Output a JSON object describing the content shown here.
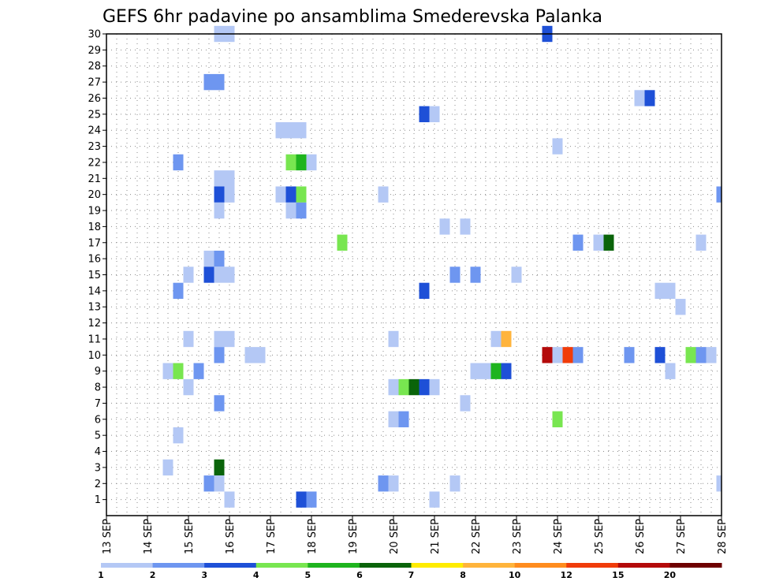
{
  "chart_data": {
    "type": "heatmap",
    "title": "GEFS 6hr padavine po ansamblima Smederevska Palanka",
    "x_ticks": [
      "13 SEP",
      "14 SEP",
      "15 SEP",
      "16 SEP",
      "17 SEP",
      "18 SEP",
      "19 SEP",
      "20 SEP",
      "21 SEP",
      "22 SEP",
      "23 SEP",
      "24 SEP",
      "25 SEP",
      "26 SEP",
      "27 SEP",
      "28 SEP"
    ],
    "y_ticks": [
      "1",
      "2",
      "3",
      "4",
      "5",
      "6",
      "7",
      "8",
      "9",
      "10",
      "11",
      "12",
      "13",
      "14",
      "15",
      "16",
      "17",
      "18",
      "19",
      "20",
      "21",
      "22",
      "23",
      "24",
      "25",
      "26",
      "27",
      "28",
      "29",
      "30"
    ],
    "ylim": [
      0,
      30
    ],
    "grid": true,
    "colorbar": {
      "labels": [
        "1",
        "2",
        "3",
        "4",
        "5",
        "6",
        "7",
        "8",
        "10",
        "12",
        "15",
        "20"
      ],
      "colors": [
        "#b4c8f5",
        "#6e96f0",
        "#1e50d7",
        "#78e650",
        "#1eb41e",
        "#0a640a",
        "#ffec00",
        "#ffb43c",
        "#ff8c1e",
        "#f03c0a",
        "#b40a0a",
        "#6e0000"
      ]
    },
    "cells": [
      {
        "x": 3.0,
        "y": 30,
        "c": 1
      },
      {
        "x": 2.75,
        "y": 30,
        "c": 1
      },
      {
        "x": 10.75,
        "y": 30,
        "c": 3
      },
      {
        "x": 2.5,
        "y": 27,
        "c": 2
      },
      {
        "x": 2.75,
        "y": 27,
        "c": 2
      },
      {
        "x": 13.0,
        "y": 26,
        "c": 1
      },
      {
        "x": 13.25,
        "y": 26,
        "c": 3
      },
      {
        "x": 7.75,
        "y": 25,
        "c": 3
      },
      {
        "x": 8.0,
        "y": 25,
        "c": 1
      },
      {
        "x": 4.25,
        "y": 24,
        "c": 1
      },
      {
        "x": 4.5,
        "y": 24,
        "c": 1
      },
      {
        "x": 4.75,
        "y": 24,
        "c": 1
      },
      {
        "x": 11.0,
        "y": 23,
        "c": 1
      },
      {
        "x": 1.75,
        "y": 22,
        "c": 2
      },
      {
        "x": 4.5,
        "y": 22,
        "c": 4
      },
      {
        "x": 4.75,
        "y": 22,
        "c": 5
      },
      {
        "x": 5.0,
        "y": 22,
        "c": 1
      },
      {
        "x": 2.75,
        "y": 21,
        "c": 1
      },
      {
        "x": 3.0,
        "y": 21,
        "c": 1
      },
      {
        "x": 2.75,
        "y": 20,
        "c": 3
      },
      {
        "x": 3.0,
        "y": 20,
        "c": 1
      },
      {
        "x": 4.25,
        "y": 20,
        "c": 1
      },
      {
        "x": 4.5,
        "y": 20,
        "c": 3
      },
      {
        "x": 4.75,
        "y": 20,
        "c": 4
      },
      {
        "x": 6.75,
        "y": 20,
        "c": 1
      },
      {
        "x": 15.0,
        "y": 20,
        "c": 2
      },
      {
        "x": 2.75,
        "y": 19,
        "c": 1
      },
      {
        "x": 4.5,
        "y": 19,
        "c": 1
      },
      {
        "x": 4.75,
        "y": 19,
        "c": 2
      },
      {
        "x": 8.25,
        "y": 18,
        "c": 1
      },
      {
        "x": 8.75,
        "y": 18,
        "c": 1
      },
      {
        "x": 5.75,
        "y": 17,
        "c": 4
      },
      {
        "x": 11.5,
        "y": 17,
        "c": 2
      },
      {
        "x": 12.0,
        "y": 17,
        "c": 1
      },
      {
        "x": 12.25,
        "y": 17,
        "c": 6
      },
      {
        "x": 14.5,
        "y": 17,
        "c": 1
      },
      {
        "x": 2.5,
        "y": 16,
        "c": 1
      },
      {
        "x": 2.75,
        "y": 16,
        "c": 2
      },
      {
        "x": 2.0,
        "y": 15,
        "c": 1
      },
      {
        "x": 2.5,
        "y": 15,
        "c": 3
      },
      {
        "x": 2.75,
        "y": 15,
        "c": 1
      },
      {
        "x": 3.0,
        "y": 15,
        "c": 1
      },
      {
        "x": 8.5,
        "y": 15,
        "c": 2
      },
      {
        "x": 9.0,
        "y": 15,
        "c": 2
      },
      {
        "x": 10.0,
        "y": 15,
        "c": 1
      },
      {
        "x": 1.75,
        "y": 14,
        "c": 2
      },
      {
        "x": 7.75,
        "y": 14,
        "c": 3
      },
      {
        "x": 13.5,
        "y": 14,
        "c": 1
      },
      {
        "x": 13.75,
        "y": 14,
        "c": 1
      },
      {
        "x": 14.0,
        "y": 13,
        "c": 1
      },
      {
        "x": 2.0,
        "y": 11,
        "c": 1
      },
      {
        "x": 2.75,
        "y": 11,
        "c": 1
      },
      {
        "x": 3.0,
        "y": 11,
        "c": 1
      },
      {
        "x": 7.0,
        "y": 11,
        "c": 1
      },
      {
        "x": 9.5,
        "y": 11,
        "c": 1
      },
      {
        "x": 9.75,
        "y": 11,
        "c": 8
      },
      {
        "x": 2.75,
        "y": 10,
        "c": 2
      },
      {
        "x": 3.5,
        "y": 10,
        "c": 1
      },
      {
        "x": 3.75,
        "y": 10,
        "c": 1
      },
      {
        "x": 10.75,
        "y": 10,
        "c": 11
      },
      {
        "x": 11.0,
        "y": 10,
        "c": 1
      },
      {
        "x": 11.25,
        "y": 10,
        "c": 10
      },
      {
        "x": 11.5,
        "y": 10,
        "c": 2
      },
      {
        "x": 12.75,
        "y": 10,
        "c": 2
      },
      {
        "x": 13.5,
        "y": 10,
        "c": 3
      },
      {
        "x": 14.25,
        "y": 10,
        "c": 4
      },
      {
        "x": 14.5,
        "y": 10,
        "c": 2
      },
      {
        "x": 14.75,
        "y": 10,
        "c": 1
      },
      {
        "x": 1.5,
        "y": 9,
        "c": 1
      },
      {
        "x": 1.75,
        "y": 9,
        "c": 4
      },
      {
        "x": 2.25,
        "y": 9,
        "c": 2
      },
      {
        "x": 9.0,
        "y": 9,
        "c": 1
      },
      {
        "x": 9.25,
        "y": 9,
        "c": 1
      },
      {
        "x": 9.5,
        "y": 9,
        "c": 5
      },
      {
        "x": 9.75,
        "y": 9,
        "c": 3
      },
      {
        "x": 13.75,
        "y": 9,
        "c": 1
      },
      {
        "x": 2.0,
        "y": 8,
        "c": 1
      },
      {
        "x": 7.0,
        "y": 8,
        "c": 1
      },
      {
        "x": 7.25,
        "y": 8,
        "c": 4
      },
      {
        "x": 7.5,
        "y": 8,
        "c": 6
      },
      {
        "x": 7.75,
        "y": 8,
        "c": 3
      },
      {
        "x": 8.0,
        "y": 8,
        "c": 1
      },
      {
        "x": 2.75,
        "y": 7,
        "c": 2
      },
      {
        "x": 8.75,
        "y": 7,
        "c": 1
      },
      {
        "x": 7.0,
        "y": 6,
        "c": 1
      },
      {
        "x": 7.25,
        "y": 6,
        "c": 2
      },
      {
        "x": 11.0,
        "y": 6,
        "c": 4
      },
      {
        "x": 1.75,
        "y": 5,
        "c": 1
      },
      {
        "x": 1.5,
        "y": 3,
        "c": 1
      },
      {
        "x": 2.75,
        "y": 3,
        "c": 6
      },
      {
        "x": 2.5,
        "y": 2,
        "c": 2
      },
      {
        "x": 2.75,
        "y": 2,
        "c": 1
      },
      {
        "x": 6.75,
        "y": 2,
        "c": 2
      },
      {
        "x": 7.0,
        "y": 2,
        "c": 1
      },
      {
        "x": 8.5,
        "y": 2,
        "c": 1
      },
      {
        "x": 15.0,
        "y": 2,
        "c": 1
      },
      {
        "x": 3.0,
        "y": 1,
        "c": 1
      },
      {
        "x": 4.75,
        "y": 1,
        "c": 3
      },
      {
        "x": 5.0,
        "y": 1,
        "c": 2
      },
      {
        "x": 8.0,
        "y": 1,
        "c": 1
      }
    ]
  }
}
